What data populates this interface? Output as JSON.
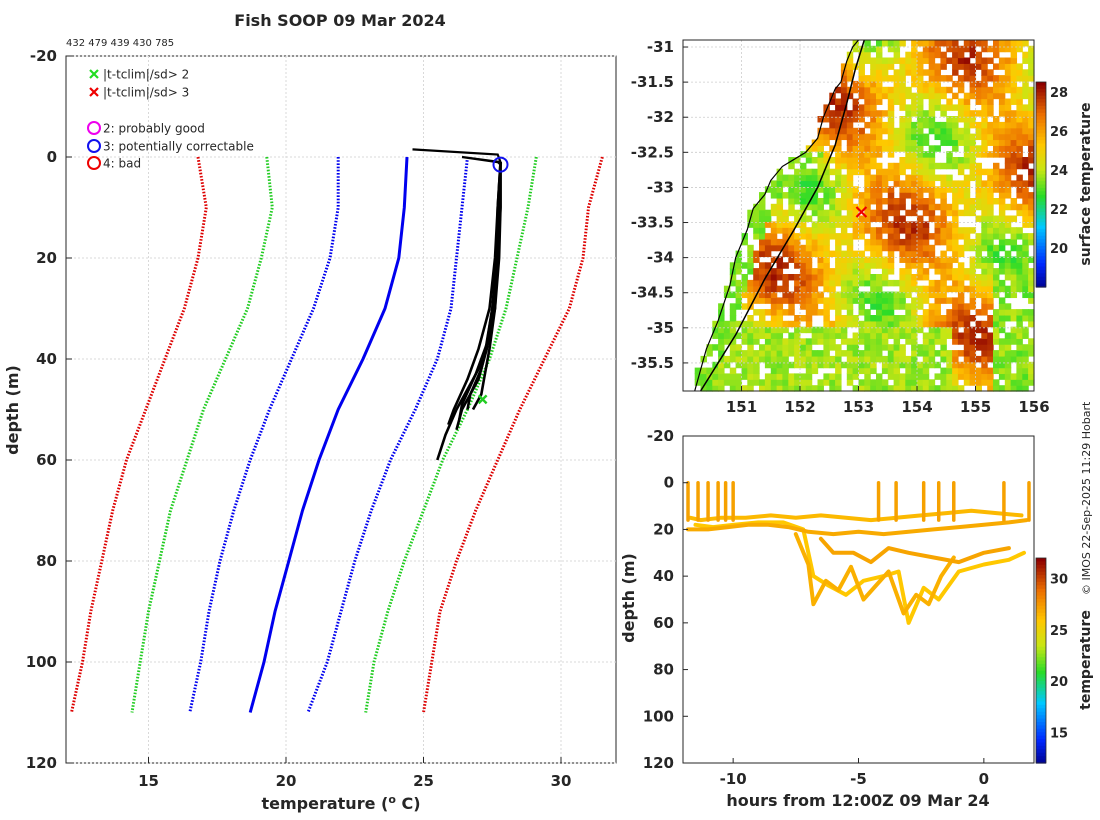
{
  "header": {
    "title": "Fish SOOP 09 Mar 2024",
    "ids": "432 479 439 430 785"
  },
  "credit": "© IMOS 22-Sep-2025 11:29 Hobart",
  "legend": [
    {
      "marker": "x",
      "color": "#22dd22",
      "label": "|t-tclim|/sd> 2"
    },
    {
      "marker": "x",
      "color": "#ee0000",
      "label": "|t-tclim|/sd> 3"
    },
    {
      "marker": "o",
      "color": "#ee00ee",
      "label": "2: probably good"
    },
    {
      "marker": "o",
      "color": "#1111ee",
      "label": "3: potentially correctable"
    },
    {
      "marker": "o",
      "color": "#ee0000",
      "label": "4: bad"
    }
  ],
  "colors": {
    "clim_mean": "#0000ee",
    "sd2": "#22cc22",
    "sd3": "#dd0000",
    "profile": "#000000"
  },
  "chart_data": [
    {
      "id": "profile",
      "type": "line",
      "title": "Fish SOOP 09 Mar 2024",
      "xlabel": "temperature (",
      "xlabel_sup": "o",
      "xlabel_end": " C)",
      "ylabel": "depth (m)",
      "xlim": [
        12,
        32
      ],
      "ylim": [
        120,
        -20
      ],
      "xticks": [
        15,
        20,
        25,
        30
      ],
      "yticks": [
        -20,
        0,
        20,
        40,
        60,
        80,
        100,
        120
      ],
      "grid": true,
      "depths": [
        0,
        10,
        20,
        30,
        40,
        50,
        60,
        70,
        80,
        90,
        100,
        110
      ],
      "clim_lines": [
        {
          "name": "climatology mean",
          "style": "solid",
          "color": "#0000ee",
          "temps": [
            24.4,
            24.3,
            24.1,
            23.6,
            22.8,
            21.9,
            21.2,
            20.6,
            20.1,
            19.6,
            19.2,
            18.7
          ]
        },
        {
          "name": "-1 sd",
          "style": "dotted",
          "color": "#0000ee",
          "temps": [
            21.9,
            21.9,
            21.6,
            21.0,
            20.2,
            19.4,
            18.7,
            18.1,
            17.6,
            17.2,
            16.9,
            16.5
          ]
        },
        {
          "name": "+1 sd",
          "style": "dotted",
          "color": "#0000ee",
          "temps": [
            26.6,
            26.4,
            26.2,
            26.0,
            25.5,
            24.7,
            23.8,
            23.1,
            22.5,
            22.0,
            21.5,
            20.8
          ]
        },
        {
          "name": "-2 sd",
          "style": "dotted",
          "color": "#22cc22",
          "temps": [
            19.3,
            19.5,
            19.1,
            18.6,
            17.8,
            17.0,
            16.4,
            15.8,
            15.4,
            15.0,
            14.7,
            14.4
          ]
        },
        {
          "name": "+2 sd",
          "style": "dotted",
          "color": "#22cc22",
          "temps": [
            29.1,
            28.8,
            28.4,
            28.0,
            27.4,
            26.6,
            25.7,
            25.0,
            24.3,
            23.7,
            23.2,
            22.9
          ]
        },
        {
          "name": "-3 sd",
          "style": "dotted",
          "color": "#dd0000",
          "temps": [
            16.8,
            17.1,
            16.8,
            16.3,
            15.6,
            14.9,
            14.2,
            13.7,
            13.3,
            12.9,
            12.6,
            12.2
          ]
        },
        {
          "name": "+3 sd",
          "style": "dotted",
          "color": "#dd0000",
          "temps": [
            31.5,
            31.0,
            30.8,
            30.3,
            29.4,
            28.5,
            27.7,
            26.9,
            26.2,
            25.6,
            25.3,
            25.0
          ]
        }
      ],
      "profiles": [
        {
          "temps": [
            27.8,
            27.75,
            27.7,
            27.5,
            27.2,
            26.7,
            26.2,
            25.8,
            25.5
          ],
          "depths": [
            1,
            10,
            20,
            30,
            40,
            45,
            50,
            55,
            60
          ]
        },
        {
          "temps": [
            27.8,
            27.7,
            27.6,
            27.4,
            27.0,
            26.6,
            26.1,
            25.9
          ],
          "depths": [
            1,
            10,
            20,
            30,
            38,
            44,
            50,
            53
          ]
        },
        {
          "temps": [
            27.8,
            27.7,
            27.65,
            27.5,
            27.3,
            26.9,
            26.4,
            26.3
          ],
          "depths": [
            1,
            10,
            20,
            30,
            37,
            43,
            49,
            52
          ]
        },
        {
          "temps": [
            27.8,
            27.75,
            27.7,
            27.6,
            27.4,
            27.1,
            26.7,
            26.6
          ],
          "depths": [
            1,
            10,
            20,
            28,
            35,
            42,
            47,
            50
          ]
        },
        {
          "temps": [
            27.8,
            27.8,
            27.7,
            27.6,
            27.3,
            27.0,
            26.4,
            26.2
          ],
          "depths": [
            1,
            10,
            20,
            30,
            38,
            44,
            50,
            54
          ]
        },
        {
          "temps": [
            27.8,
            27.8,
            27.75,
            27.6,
            27.4,
            27.2,
            27.1,
            26.8
          ],
          "depths": [
            1,
            10,
            20,
            30,
            38,
            44,
            47,
            50
          ]
        }
      ],
      "surface_trace": {
        "temps": [
          24.6,
          27.7,
          27.8,
          26.4,
          27.7,
          27.8
        ],
        "depths": [
          -1.5,
          -0.5,
          1,
          0,
          1,
          1.5
        ]
      },
      "flag_markers": [
        {
          "marker": "o",
          "color": "#1111ee",
          "temp": 27.8,
          "depth": 1.5
        },
        {
          "marker": "x",
          "color": "#22cc22",
          "temp": 27.15,
          "depth": 48
        }
      ]
    },
    {
      "id": "sst_map",
      "type": "heatmap",
      "colorbar_label": "surface temperature",
      "xlim": [
        150,
        156
      ],
      "ylim": [
        -35.9,
        -30.9
      ],
      "xticks": [
        151,
        152,
        153,
        154,
        155,
        156
      ],
      "yticks": [
        -31,
        -31.5,
        -32,
        -32.5,
        -33,
        -33.5,
        -34,
        -34.5,
        -35,
        -35.5
      ],
      "clim": [
        18,
        28.5
      ],
      "cticks": [
        20,
        22,
        24,
        26,
        28
      ],
      "track": {
        "lon": [
          150.3,
          150.9,
          151.4,
          151.9,
          152.3,
          152.6,
          152.8,
          152.95,
          153.1
        ],
        "lat": [
          -35.9,
          -35.1,
          -34.3,
          -33.6,
          -33.0,
          -32.4,
          -31.8,
          -31.3,
          -30.9
        ]
      },
      "coast": {
        "lon": [
          150.2,
          150.4,
          150.6,
          150.8,
          150.9,
          151.1,
          151.2,
          151.4,
          151.5,
          151.7,
          151.9,
          152.1,
          152.3,
          152.4,
          152.5,
          152.6,
          152.7,
          152.8,
          152.85,
          152.9,
          152.95,
          153.0
        ],
        "lat": [
          -35.9,
          -35.3,
          -34.9,
          -34.4,
          -34.0,
          -33.6,
          -33.3,
          -33.1,
          -32.9,
          -32.7,
          -32.6,
          -32.5,
          -32.3,
          -32.0,
          -31.8,
          -31.6,
          -31.5,
          -31.2,
          -31.1,
          -31.0,
          -30.95,
          -30.9
        ]
      },
      "marker": {
        "lon": 153.05,
        "lat": -33.35,
        "marker": "x",
        "color": "#ee0000"
      }
    },
    {
      "id": "time_depth",
      "type": "scatter",
      "xlabel": "hours from 12:00Z 09 Mar 24",
      "ylabel": "depth (m)",
      "colorbar_label": "temperature",
      "xlim": [
        -12,
        2
      ],
      "ylim": [
        120,
        -20
      ],
      "xticks": [
        -10,
        -5,
        0
      ],
      "yticks": [
        -20,
        0,
        20,
        40,
        60,
        80,
        100,
        120
      ],
      "clim": [
        12,
        32
      ],
      "cticks": [
        15,
        20,
        25,
        30
      ],
      "tows": [
        {
          "hours": [
            -11.7,
            -11.3,
            -10.5,
            -9.5,
            -8.5,
            -7.5,
            -6.5,
            -5.5,
            -4.5,
            -3.5,
            -2.5,
            -1.5,
            -0.5,
            0.5,
            1.5
          ],
          "depths": [
            15,
            16,
            15,
            15,
            14,
            15,
            14,
            15,
            16,
            15,
            14,
            13,
            12,
            13,
            14
          ],
          "temp": 26.5
        },
        {
          "hours": [
            -11.5,
            -10.8,
            -10.0,
            -9.0,
            -8.0,
            -7.2,
            -6.8,
            -6.2,
            -5.5,
            -4.8,
            -4.0,
            -3.4,
            -3.0,
            -2.4,
            -1.8,
            -1.0,
            0.0,
            1.0,
            1.6
          ],
          "depths": [
            18,
            19,
            18,
            17,
            17,
            20,
            40,
            44,
            48,
            42,
            40,
            38,
            60,
            45,
            50,
            38,
            35,
            33,
            30
          ],
          "temp": 26.0
        },
        {
          "hours": [
            -7.5,
            -7.0,
            -6.8,
            -6.3,
            -5.8,
            -5.3,
            -4.8,
            -4.3,
            -3.8,
            -3.2,
            -2.7,
            -2.2,
            -1.7,
            -1.2
          ],
          "depths": [
            22,
            35,
            52,
            42,
            46,
            36,
            50,
            44,
            38,
            56,
            48,
            52,
            40,
            32
          ],
          "temp": 26.8
        },
        {
          "hours": [
            -6.5,
            -6.0,
            -5.2,
            -4.5,
            -3.8,
            -3.0,
            -2.0,
            -1.0,
            0.0,
            1.0
          ],
          "depths": [
            24,
            30,
            30,
            34,
            28,
            30,
            32,
            34,
            30,
            28
          ],
          "temp": 27.2
        },
        {
          "hours": [
            -11.8,
            -11.0,
            -10.2,
            -9.4,
            -8.6,
            -7.8,
            -7.0,
            -6.0,
            -5.0,
            -4.0,
            -3.0,
            -2.0,
            -1.0,
            0.0,
            1.0,
            1.7
          ],
          "depths": [
            20,
            20,
            19,
            18,
            18,
            19,
            21,
            22,
            21,
            22,
            21,
            20,
            19,
            18,
            17,
            16
          ],
          "temp": 27.0
        }
      ],
      "surface_spikes_hours": [
        -11.8,
        -11.4,
        -11.0,
        -10.6,
        -10.3,
        -10.0,
        -4.2,
        -3.5,
        -2.4,
        -1.8,
        -1.2,
        0.8,
        1.8
      ]
    }
  ]
}
